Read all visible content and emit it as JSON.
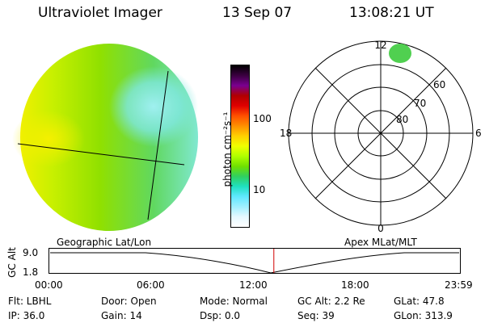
{
  "header": {
    "title": "Ultraviolet Imager",
    "date": "13 Sep 07",
    "time": "13:08:21 UT"
  },
  "colorbar": {
    "unit_label": "photon cm⁻²s⁻¹",
    "ticks": [
      "100",
      "10"
    ],
    "colors": [
      "#000000",
      "#3b0040",
      "#7a0090",
      "#b00000",
      "#e00000",
      "#ff5000",
      "#ff9000",
      "#ffd000",
      "#f0ff00",
      "#b0ff00",
      "#70e000",
      "#30d060",
      "#20e0c0",
      "#60e8ff",
      "#a0f0ff",
      "#e6f8ff",
      "#ffffff"
    ]
  },
  "polar": {
    "mlt_labels": {
      "top": "12",
      "left": "18",
      "right": "6",
      "bottom": "0"
    },
    "lat_labels": [
      "60",
      "70",
      "80"
    ]
  },
  "timeline": {
    "left_label": "Geographic Lat/Lon",
    "right_label": "Apex MLat/MLT",
    "axis_title": "GC Alt",
    "y_ticks": [
      "9.0",
      "1.8"
    ],
    "x_ticks": [
      "00:00",
      "06:00",
      "12:00",
      "18:00",
      "23:59"
    ],
    "current_time_fraction": 0.547,
    "current_marker_color": "#d00000"
  },
  "info": {
    "flt": "Flt: LBHL",
    "ip": "IP: 36.0",
    "door": "Door: Open",
    "gain": "Gain: 14",
    "mode": "Mode: Normal",
    "dsp": "Dsp:     0.0",
    "gc_alt": "GC Alt: 2.2 Re",
    "seq": "Seq: 39",
    "glat": "GLat:  47.8",
    "glon": "GLon: 313.9"
  }
}
